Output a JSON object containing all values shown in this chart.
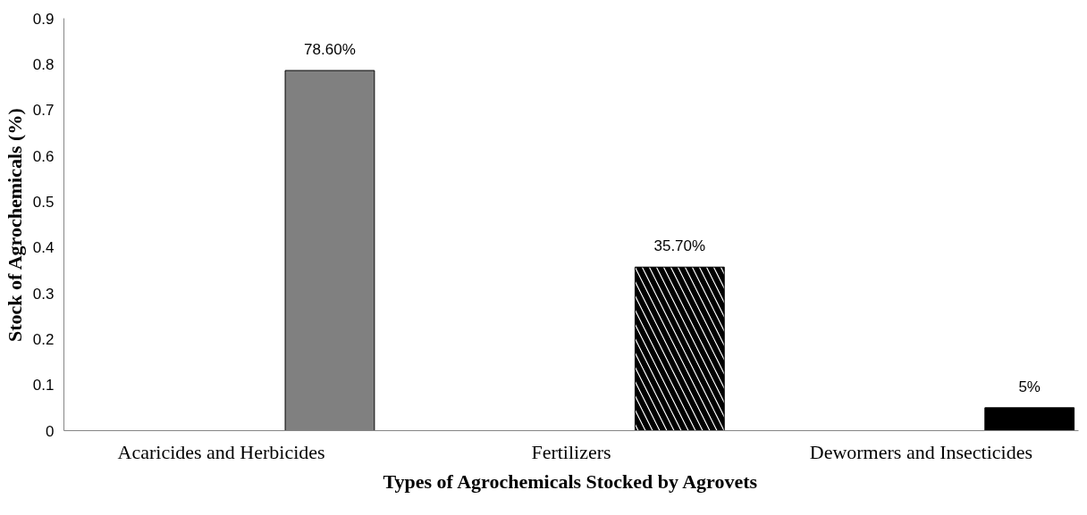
{
  "chart_data": {
    "type": "bar",
    "xlabel": "Types of Agrochemicals Stocked by Agrovets",
    "ylabel": "Stock of Agrochemicals (%)",
    "categories": [
      "Acaricides and Herbicides",
      "Fertilizers",
      "Dewormers and Insecticides"
    ],
    "values": [
      0.786,
      0.357,
      0.05
    ],
    "colors": [
      "#808080",
      "#ffffff",
      "#000000"
    ],
    "value_labels": [
      "78.60%",
      "35.70%",
      "5%"
    ],
    "ylim": [
      0,
      0.9
    ],
    "yticks": [
      {
        "value": 0,
        "label": "0"
      },
      0.1,
      0.2,
      0.3,
      0.4,
      0.5,
      0.6,
      0.7,
      0.8,
      0.9
    ],
    "grid": false
  }
}
